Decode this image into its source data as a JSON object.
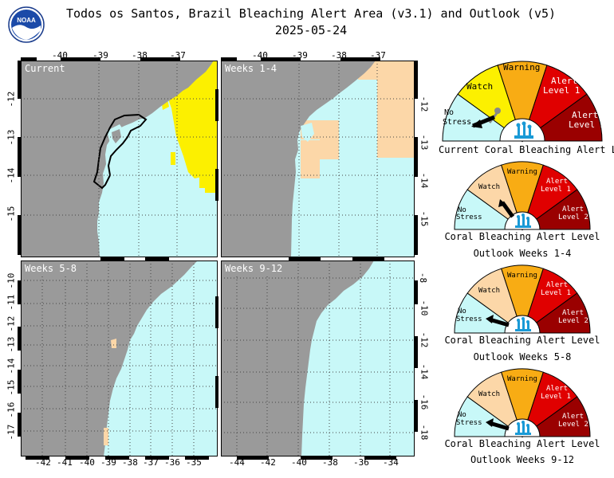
{
  "title_line1": "Todos os Santos, Brazil Bleaching Alert Area (v3.1) and Outlook (v5)",
  "title_line2": "2025-05-24",
  "logo_text": "NOAA",
  "colors": {
    "land": "#9a9a9a",
    "no_stress": "#c8f8f8",
    "watch": "#fcd7a8",
    "warning": "#f8ac14",
    "alert1": "#e00000",
    "alert2": "#9a0000",
    "yellow": "#fcf000"
  },
  "panels": [
    {
      "id": "current",
      "label": "Current"
    },
    {
      "id": "weeks1_4",
      "label": "Weeks 1-4"
    },
    {
      "id": "weeks5_8",
      "label": "Weeks 5-8"
    },
    {
      "id": "weeks9_12",
      "label": "Weeks 9-12"
    }
  ],
  "axes": {
    "top_lon": [
      "-40",
      "-39",
      "-38",
      "-37"
    ],
    "top_lon2": [
      "-40",
      "-39",
      "-38",
      "-37"
    ],
    "left_lat": [
      "-12",
      "-13",
      "-14",
      "-15"
    ],
    "right_lat": [
      "-12",
      "-13",
      "-14",
      "-15"
    ],
    "left_lat2": [
      "-10",
      "-11",
      "-12",
      "-13",
      "-14",
      "-15",
      "-16",
      "-17"
    ],
    "right_lat2": [
      "-8",
      "-10",
      "-12",
      "-14",
      "-16",
      "-18"
    ],
    "bottom_lon": [
      "-42",
      "-41",
      "-40",
      "-39",
      "-38",
      "-37",
      "-36",
      "-35"
    ],
    "bottom_lon2": [
      "-44",
      "-42",
      "-40",
      "-38",
      "-36",
      "-34"
    ]
  },
  "gauge_labels": {
    "no_stress": [
      "No",
      "Stress"
    ],
    "watch": "Watch",
    "warning": "Warning",
    "alert1": [
      "Alert",
      "Level 1"
    ],
    "alert2": [
      "Alert",
      "Level 2"
    ]
  },
  "gauges": [
    {
      "caption1": "Current Coral Bleaching Alert Level",
      "caption2": "",
      "level": "No Stress",
      "muted": false
    },
    {
      "caption1": "Coral Bleaching Alert Level",
      "caption2": "Outlook Weeks 1-4",
      "level": "Watch",
      "muted": true
    },
    {
      "caption1": "Coral Bleaching Alert Level",
      "caption2": "Outlook Weeks 5-8",
      "level": "No Stress",
      "muted": true
    },
    {
      "caption1": "Coral Bleaching Alert Level",
      "caption2": "Outlook Weeks 9-12",
      "level": "No Stress",
      "muted": true
    }
  ]
}
